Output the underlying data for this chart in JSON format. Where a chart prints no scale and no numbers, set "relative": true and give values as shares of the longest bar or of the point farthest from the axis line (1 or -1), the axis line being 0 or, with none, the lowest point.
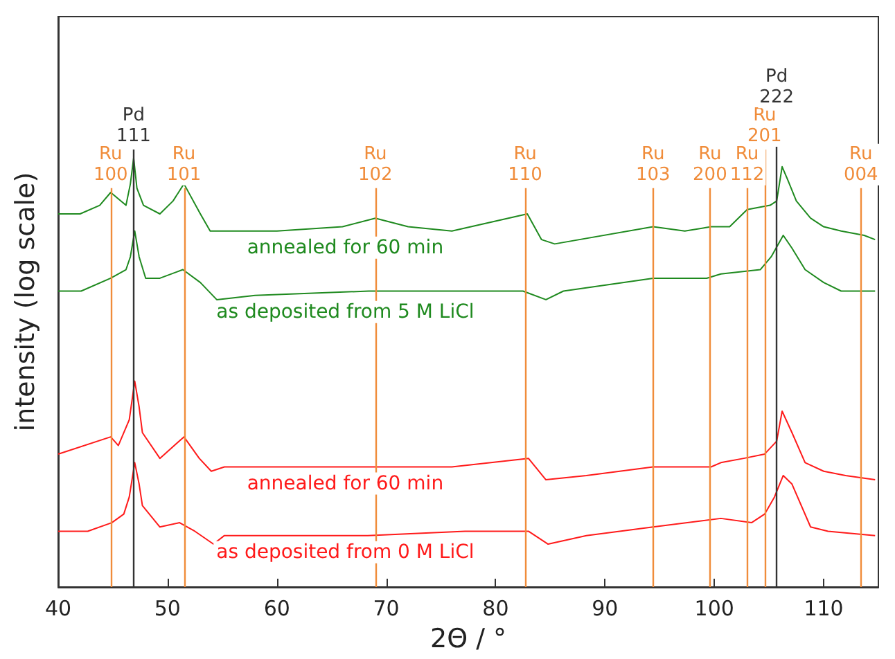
{
  "chart_data": {
    "type": "line",
    "relative": true,
    "xlabel": "2Θ / °",
    "ylabel": "intensity (log scale)",
    "xlim": [
      40,
      115
    ],
    "xticks": [
      40,
      50,
      60,
      70,
      80,
      90,
      100,
      110
    ],
    "grid": false,
    "legend": false,
    "marker": "none",
    "line_style": "solid",
    "series": [
      {
        "name": "annealed for 60 min",
        "color": "#1f8a1f",
        "x": [
          40,
          42,
          43.8,
          44.8,
          46.2,
          46.6,
          46.9,
          47.2,
          47.8,
          49.3,
          50.5,
          51.5,
          53.0,
          53.9,
          54.5,
          60,
          66,
          69.0,
          72,
          76,
          82.9,
          84.2,
          85.4,
          94.4,
          97.3,
          99.7,
          101.4,
          103,
          105.1,
          105.7,
          106.2,
          106.7,
          107.5,
          108.8,
          110,
          111.6,
          113.7,
          114.7
        ],
        "values": [
          0.87,
          0.87,
          0.89,
          0.92,
          0.89,
          0.94,
          1.0,
          0.93,
          0.89,
          0.87,
          0.9,
          0.94,
          0.87,
          0.83,
          0.83,
          0.83,
          0.84,
          0.86,
          0.84,
          0.83,
          0.87,
          0.81,
          0.8,
          0.84,
          0.83,
          0.84,
          0.84,
          0.88,
          0.89,
          0.9,
          0.98,
          0.95,
          0.9,
          0.86,
          0.84,
          0.83,
          0.82,
          0.81
        ]
      },
      {
        "name": "as deposited from 5 M LiCl",
        "color": "#1f8a1f",
        "x": [
          40,
          42.1,
          44.8,
          46.2,
          46.6,
          47.0,
          47.4,
          48,
          49.3,
          51.4,
          53.0,
          54.5,
          58,
          68.4,
          76,
          82.5,
          84.6,
          86.2,
          94.4,
          99.3,
          100.6,
          104.2,
          105.2,
          106.3,
          107.1,
          108.3,
          110,
          111.6,
          114.7
        ],
        "values": [
          0.69,
          0.69,
          0.72,
          0.74,
          0.77,
          0.83,
          0.77,
          0.72,
          0.72,
          0.74,
          0.71,
          0.67,
          0.68,
          0.69,
          0.69,
          0.69,
          0.67,
          0.69,
          0.72,
          0.72,
          0.73,
          0.74,
          0.77,
          0.82,
          0.79,
          0.74,
          0.71,
          0.69,
          0.69
        ]
      },
      {
        "name": "annealed for 60 min",
        "color": "#ff1a1a",
        "x": [
          40,
          44.8,
          45.5,
          46.5,
          47.0,
          47.4,
          47.7,
          49.3,
          51.5,
          52.9,
          54.0,
          55.2,
          60,
          68.7,
          76,
          83,
          84.6,
          88.3,
          94.4,
          99.7,
          100.6,
          102.7,
          104.6,
          105.7,
          106.2,
          107.1,
          108.3,
          110,
          112,
          114.7
        ],
        "values": [
          0.31,
          0.35,
          0.33,
          0.39,
          0.48,
          0.42,
          0.36,
          0.3,
          0.35,
          0.3,
          0.27,
          0.28,
          0.28,
          0.28,
          0.28,
          0.3,
          0.25,
          0.26,
          0.28,
          0.28,
          0.29,
          0.3,
          0.31,
          0.34,
          0.41,
          0.36,
          0.29,
          0.27,
          0.26,
          0.25
        ]
      },
      {
        "name": "as deposited from 0 M LiCl",
        "color": "#ff1a1a",
        "x": [
          40,
          42.7,
          44.9,
          46,
          46.5,
          47.0,
          47.4,
          47.7,
          49.3,
          51.1,
          52.5,
          54.2,
          55.2,
          60,
          68.3,
          77.2,
          83,
          84.8,
          88.3,
          94.4,
          100.6,
          103.4,
          104.6,
          105.5,
          106.3,
          107.1,
          108.8,
          110.4,
          114.7
        ],
        "values": [
          0.13,
          0.13,
          0.15,
          0.17,
          0.21,
          0.29,
          0.24,
          0.19,
          0.14,
          0.15,
          0.13,
          0.1,
          0.12,
          0.12,
          0.12,
          0.13,
          0.13,
          0.1,
          0.12,
          0.14,
          0.16,
          0.15,
          0.17,
          0.21,
          0.26,
          0.24,
          0.14,
          0.13,
          0.12
        ]
      }
    ],
    "ref_lines": [
      {
        "axis": "x",
        "value": 44.8,
        "label": "Ru 100",
        "color": "#f08c3a"
      },
      {
        "axis": "x",
        "value": 46.9,
        "label": "Pd 111",
        "color": "#333333"
      },
      {
        "axis": "x",
        "value": 51.5,
        "label": "Ru 101",
        "color": "#f08c3a"
      },
      {
        "axis": "x",
        "value": 69.0,
        "label": "Ru 102",
        "color": "#f08c3a"
      },
      {
        "axis": "x",
        "value": 82.7,
        "label": "Ru 110",
        "color": "#f08c3a"
      },
      {
        "axis": "x",
        "value": 94.4,
        "label": "Ru 103",
        "color": "#f08c3a"
      },
      {
        "axis": "x",
        "value": 99.6,
        "label": "Ru 200",
        "color": "#f08c3a"
      },
      {
        "axis": "x",
        "value": 103.0,
        "label": "Ru 112",
        "color": "#f08c3a"
      },
      {
        "axis": "x",
        "value": 104.6,
        "label": "Ru 201",
        "color": "#f08c3a"
      },
      {
        "axis": "x",
        "value": 105.7,
        "label": "Pd 222",
        "color": "#333333"
      },
      {
        "axis": "x",
        "value": 113.4,
        "label": "Ru 004",
        "color": "#f08c3a"
      }
    ]
  }
}
